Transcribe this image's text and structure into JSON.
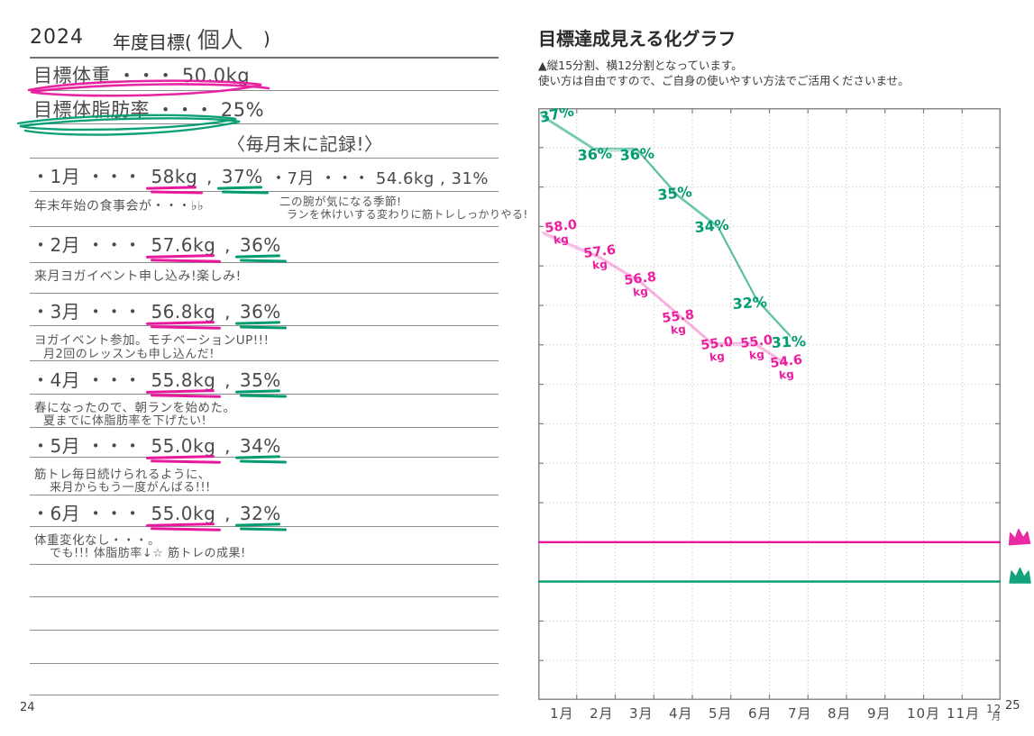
{
  "colors": {
    "marker_pink": "#e8189c",
    "marker_green": "#009b70",
    "handwriting_ink": "#4a4a4a",
    "printed_ink": "#2e2e2e"
  },
  "left_page": {
    "year": "2024",
    "title_printed": "年度目標(",
    "title_handwritten": "個人",
    "title_close": ")",
    "goal_weight_line": "目標体重 ・・・ 50.0kg",
    "goal_fat_line": "目標体脂肪率 ・・・ 25%",
    "record_reminder": "〈毎月末に記録!〉",
    "entries": [
      {
        "prefix": "・1月 ・・・ ",
        "value": "58kg",
        "sep": " , ",
        "percent": "37%",
        "notes": [
          "年末年始の食事会が・・・♭♭"
        ]
      },
      {
        "prefix": "・2月 ・・・ ",
        "value": "57.6kg",
        "sep": " , ",
        "percent": "36%",
        "notes": [
          "来月ヨガイベント申し込み!楽しみ!"
        ]
      },
      {
        "prefix": "・3月 ・・・ ",
        "value": "56.8kg",
        "sep": " , ",
        "percent": "36%",
        "notes": [
          "ヨガイベント参加。モチベーションUP!!!",
          "月2回のレッスンも申し込んだ!"
        ]
      },
      {
        "prefix": "・4月 ・・・ ",
        "value": "55.8kg",
        "sep": " , ",
        "percent": "35%",
        "notes": [
          "春になったので、朝ランを始めた。",
          "夏までに体脂肪率を下げたい!"
        ]
      },
      {
        "prefix": "・5月 ・・・ ",
        "value": "55.0kg",
        "sep": " , ",
        "percent": "34%",
        "notes": [
          "筋トレ毎日続けられるように、",
          "来月からもう一度がんばる!!!"
        ]
      },
      {
        "prefix": "・6月 ・・・ ",
        "value": "55.0kg",
        "sep": " , ",
        "percent": "32%",
        "notes": [
          "体重変化なし・・・。",
          "でも!!! 体脂肪率↓☆ 筋トレの成果!"
        ]
      }
    ],
    "july": {
      "line": "・7月 ・・・ 54.6kg , 31%",
      "notes": [
        "二の腕が気になる季節!",
        "ランを休けいする変わりに筋トレしっかりやる!"
      ]
    },
    "page_number": "24"
  },
  "right_page": {
    "title": "目標達成見える化グラフ",
    "subtitle_line1": "▲縦15分割、横12分割となっています。",
    "subtitle_line2": "使い方は自由ですので、ご自身の使いやすい方法でご活用くださいませ。",
    "page_number": "25"
  },
  "chart_data": {
    "type": "line",
    "title": "目標達成見える化グラフ",
    "months": [
      "1月",
      "2月",
      "3月",
      "4月",
      "5月",
      "6月",
      "7月",
      "8月",
      "9月",
      "10月",
      "11月",
      "12月"
    ],
    "grid": {
      "rows": 15,
      "cols": 12
    },
    "series": [
      {
        "name": "体脂肪率",
        "unit": "%",
        "color": "#009b70",
        "values": [
          37,
          36,
          36,
          35,
          34,
          32,
          31
        ],
        "point_labels": [
          "37%",
          "36%",
          "36%",
          "35%",
          "34%",
          "32%",
          "31%"
        ]
      },
      {
        "name": "体重",
        "unit": "kg",
        "color": "#ea1f9e",
        "values": [
          58.0,
          57.6,
          56.8,
          55.8,
          55.0,
          55.0,
          54.6
        ],
        "point_labels": [
          "58.0",
          "57.6",
          "56.8",
          "55.8",
          "55.0",
          "55.0",
          "54.6"
        ],
        "label_suffix": "kg"
      }
    ],
    "target_lines": [
      {
        "name": "目標体重",
        "value": "50.0kg",
        "color": "#e8189c",
        "grid_row": 11
      },
      {
        "name": "目標体脂肪率",
        "value": "25%",
        "color": "#009b70",
        "grid_row": 12
      }
    ],
    "legend": "none",
    "notes": "green line = body-fat % (months 1-7), pink line = weight kg (months 1-7); horizontal pink/green lines = goal levels marked with crown doodles"
  }
}
